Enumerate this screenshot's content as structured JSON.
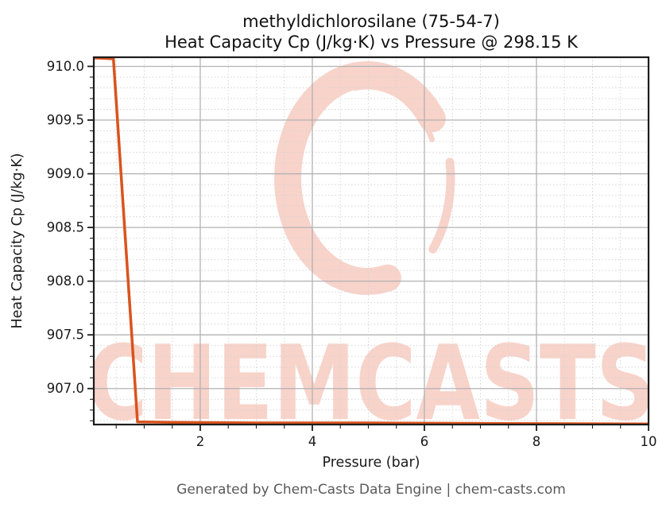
{
  "title": {
    "line1": "methyldichlorosilane (75-54-7)",
    "line2": "Heat Capacity Cp (J/kg·K) vs Pressure @ 298.15 K"
  },
  "footer": {
    "credit": "Generated by Chem-Casts Data Engine | chem-casts.com"
  },
  "watermark": {
    "text": "CHEMCASTS",
    "color": "#f8d3ca"
  },
  "colors": {
    "axis": "#1c1c1c",
    "tick_text": "#1a1a1a",
    "footer_text": "#595959",
    "background": "#ffffff"
  },
  "chart_data": {
    "type": "line",
    "title": "methyldichlorosilane (75-54-7) Heat Capacity Cp (J/kg·K) vs Pressure @ 298.15 K",
    "xlabel": "Pressure (bar)",
    "ylabel": "Heat Capacity Cp (J/kg·K)",
    "xlim": [
      0.1,
      10
    ],
    "ylim": [
      906.665,
      910.085
    ],
    "x_major_ticks": [
      2,
      4,
      6,
      8,
      10
    ],
    "x_tick_labels": [
      "2",
      "4",
      "6",
      "8",
      "10"
    ],
    "x_minor_step": 0.5,
    "y_major_ticks": [
      907.0,
      907.5,
      908.0,
      908.5,
      909.0,
      909.5,
      910.0
    ],
    "y_tick_labels": [
      "907.0",
      "907.5",
      "908.0",
      "908.5",
      "909.0",
      "909.5",
      "910.0"
    ],
    "y_minor_step": 0.1,
    "grid": {
      "major_color": "#b2b2b2",
      "minor_color": "#d4d4d4",
      "minor_style": "dotted"
    },
    "legend_position": "none",
    "series": [
      {
        "name": "Heat Capacity Cp vs Pressure",
        "color": "#d9531e",
        "line_width": 3.5,
        "points": [
          [
            0.1,
            910.08
          ],
          [
            0.45,
            910.07
          ],
          [
            0.88,
            906.69
          ],
          [
            1.5,
            906.685
          ],
          [
            3.0,
            906.68
          ],
          [
            5.0,
            906.68
          ],
          [
            7.0,
            906.675
          ],
          [
            10.0,
            906.67
          ]
        ]
      }
    ]
  }
}
